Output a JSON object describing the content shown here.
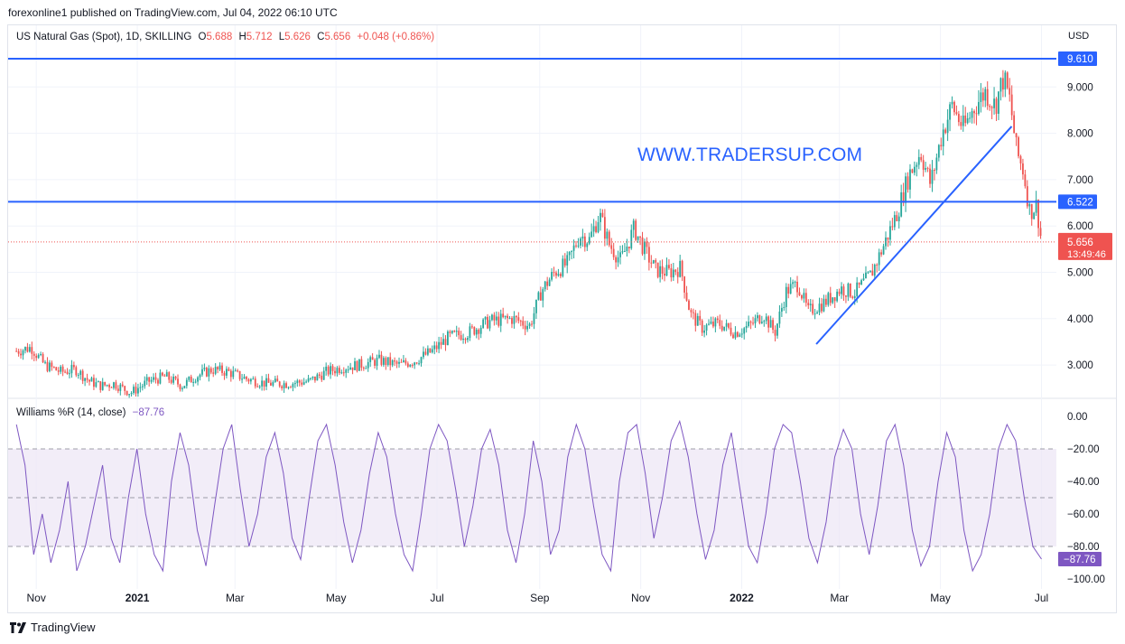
{
  "header": {
    "published_text": "forexonline1 published on TradingView.com, Jul 04, 2022 06:10 UTC"
  },
  "legend": {
    "symbol": "US Natural Gas (Spot), 1D, SKILLING",
    "o_key": "O",
    "o_val": "5.688",
    "h_key": "H",
    "h_val": "5.712",
    "l_key": "L",
    "l_val": "5.626",
    "c_key": "C",
    "c_val": "5.656",
    "change": "+0.048 (+0.86%)"
  },
  "currency": "USD",
  "watermark": "WWW.TRADERSUP.COM",
  "williams": {
    "title": "Williams %R (14, close)",
    "value": "−87.76"
  },
  "footer": {
    "brand": "TradingView"
  },
  "colors": {
    "up": "#26a69a",
    "down": "#ef5350",
    "line": "#2962ff",
    "wpr": "#7e57c2",
    "band": "#ede7f6"
  },
  "chart_data": [
    {
      "type": "candlestick",
      "ylim": [
        2.3,
        10.0
      ],
      "x_tick_labels": [
        "Nov",
        "2021",
        "Mar",
        "May",
        "Jul",
        "Sep",
        "Nov",
        "2022",
        "Mar",
        "May",
        "Jul"
      ],
      "y_tick_labels": [
        "3.000",
        "4.000",
        "5.000",
        "6.000",
        "7.000",
        "8.000",
        "9.000"
      ],
      "y_tick_values": [
        3,
        4,
        5,
        6,
        7,
        8,
        9
      ],
      "horizontal_levels": [
        {
          "value": 9.61,
          "label": "9.610"
        },
        {
          "value": 6.522,
          "label": "6.522"
        }
      ],
      "current_price": {
        "value": 5.656,
        "label": "5.656",
        "countdown": "13:49:46"
      },
      "trendline": {
        "from": {
          "date": "2022-02-15",
          "y": 3.45
        },
        "to": {
          "date": "2022-06-13",
          "y": 8.15
        }
      },
      "series_close": [
        {
          "date": "2020-10-20",
          "v": 3.3
        },
        {
          "date": "2020-10-29",
          "v": 3.38
        },
        {
          "date": "2020-11-06",
          "v": 3.0
        },
        {
          "date": "2020-11-16",
          "v": 2.85
        },
        {
          "date": "2020-11-25",
          "v": 2.9
        },
        {
          "date": "2020-12-03",
          "v": 2.65
        },
        {
          "date": "2020-12-10",
          "v": 2.55
        },
        {
          "date": "2020-12-18",
          "v": 2.6
        },
        {
          "date": "2020-12-28",
          "v": 2.4
        },
        {
          "date": "2021-01-08",
          "v": 2.65
        },
        {
          "date": "2021-01-18",
          "v": 2.75
        },
        {
          "date": "2021-01-28",
          "v": 2.55
        },
        {
          "date": "2021-02-05",
          "v": 2.75
        },
        {
          "date": "2021-02-15",
          "v": 2.9
        },
        {
          "date": "2021-02-25",
          "v": 2.85
        },
        {
          "date": "2021-03-08",
          "v": 2.7
        },
        {
          "date": "2021-03-20",
          "v": 2.6
        },
        {
          "date": "2021-04-01",
          "v": 2.6
        },
        {
          "date": "2021-04-15",
          "v": 2.65
        },
        {
          "date": "2021-04-25",
          "v": 2.85
        },
        {
          "date": "2021-05-05",
          "v": 2.95
        },
        {
          "date": "2021-05-15",
          "v": 3.0
        },
        {
          "date": "2021-05-27",
          "v": 3.1
        },
        {
          "date": "2021-06-08",
          "v": 3.0
        },
        {
          "date": "2021-06-18",
          "v": 3.1
        },
        {
          "date": "2021-06-28",
          "v": 3.3
        },
        {
          "date": "2021-07-08",
          "v": 3.6
        },
        {
          "date": "2021-07-20",
          "v": 3.7
        },
        {
          "date": "2021-08-02",
          "v": 3.95
        },
        {
          "date": "2021-08-16",
          "v": 4.0
        },
        {
          "date": "2021-08-26",
          "v": 3.85
        },
        {
          "date": "2021-09-02",
          "v": 4.6
        },
        {
          "date": "2021-09-10",
          "v": 5.0
        },
        {
          "date": "2021-09-18",
          "v": 5.2
        },
        {
          "date": "2021-09-25",
          "v": 5.8
        },
        {
          "date": "2021-10-01",
          "v": 5.7
        },
        {
          "date": "2021-10-07",
          "v": 6.25
        },
        {
          "date": "2021-10-13",
          "v": 5.6
        },
        {
          "date": "2021-10-20",
          "v": 5.25
        },
        {
          "date": "2021-10-28",
          "v": 5.95
        },
        {
          "date": "2021-11-03",
          "v": 5.5
        },
        {
          "date": "2021-11-10",
          "v": 5.05
        },
        {
          "date": "2021-11-18",
          "v": 5.0
        },
        {
          "date": "2021-11-25",
          "v": 5.1
        },
        {
          "date": "2021-12-01",
          "v": 4.1
        },
        {
          "date": "2021-12-08",
          "v": 3.8
        },
        {
          "date": "2021-12-18",
          "v": 3.9
        },
        {
          "date": "2021-12-28",
          "v": 3.7
        },
        {
          "date": "2022-01-06",
          "v": 3.85
        },
        {
          "date": "2022-01-14",
          "v": 4.1
        },
        {
          "date": "2022-01-21",
          "v": 3.7
        },
        {
          "date": "2022-01-28",
          "v": 4.6
        },
        {
          "date": "2022-02-04",
          "v": 4.75
        },
        {
          "date": "2022-02-10",
          "v": 4.15
        },
        {
          "date": "2022-02-20",
          "v": 4.35
        },
        {
          "date": "2022-03-02",
          "v": 4.65
        },
        {
          "date": "2022-03-10",
          "v": 4.55
        },
        {
          "date": "2022-03-20",
          "v": 4.95
        },
        {
          "date": "2022-03-28",
          "v": 5.6
        },
        {
          "date": "2022-04-05",
          "v": 6.3
        },
        {
          "date": "2022-04-12",
          "v": 7.1
        },
        {
          "date": "2022-04-19",
          "v": 7.6
        },
        {
          "date": "2022-04-25",
          "v": 6.9
        },
        {
          "date": "2022-05-02",
          "v": 8.0
        },
        {
          "date": "2022-05-08",
          "v": 8.6
        },
        {
          "date": "2022-05-15",
          "v": 8.1
        },
        {
          "date": "2022-05-22",
          "v": 8.6
        },
        {
          "date": "2022-05-28",
          "v": 8.9
        },
        {
          "date": "2022-06-03",
          "v": 8.6
        },
        {
          "date": "2022-06-08",
          "v": 9.2
        },
        {
          "date": "2022-06-12",
          "v": 8.7
        },
        {
          "date": "2022-06-16",
          "v": 7.6
        },
        {
          "date": "2022-06-20",
          "v": 7.2
        },
        {
          "date": "2022-06-24",
          "v": 6.3
        },
        {
          "date": "2022-06-28",
          "v": 6.45
        },
        {
          "date": "2022-07-01",
          "v": 5.656
        }
      ]
    },
    {
      "type": "line",
      "title": "Williams %R (14, close)",
      "ylim": [
        -105,
        5
      ],
      "y_tick_labels": [
        "0.00",
        "−20.00",
        "−40.00",
        "−60.00",
        "−80.00",
        "−100.00"
      ],
      "y_tick_values": [
        0,
        -20,
        -40,
        -60,
        -80,
        -100
      ],
      "bands": {
        "upper": -20,
        "middle": -50,
        "lower": -80
      },
      "last_value": {
        "value": -87.76,
        "label": "−87.76"
      },
      "series": [
        {
          "values": [
            -5,
            -30,
            -85,
            -60,
            -90,
            -70,
            -40,
            -95,
            -80,
            -55,
            -30,
            -75,
            -90,
            -50,
            -20,
            -60,
            -85,
            -95,
            -40,
            -10,
            -30,
            -70,
            -92,
            -55,
            -20,
            -5,
            -45,
            -80,
            -60,
            -25,
            -10,
            -35,
            -75,
            -88,
            -50,
            -15,
            -5,
            -30,
            -65,
            -90,
            -70,
            -35,
            -10,
            -25,
            -60,
            -85,
            -95,
            -60,
            -20,
            -5,
            -15,
            -45,
            -80,
            -55,
            -20,
            -8,
            -30,
            -70,
            -90,
            -60,
            -15,
            -40,
            -85,
            -70,
            -25,
            -5,
            -20,
            -55,
            -85,
            -95,
            -40,
            -10,
            -5,
            -35,
            -75,
            -50,
            -15,
            -3,
            -25,
            -60,
            -88,
            -70,
            -30,
            -10,
            -45,
            -80,
            -90,
            -60,
            -20,
            -5,
            -10,
            -40,
            -75,
            -90,
            -65,
            -25,
            -8,
            -20,
            -60,
            -85,
            -55,
            -15,
            -5,
            -30,
            -70,
            -92,
            -80,
            -40,
            -10,
            -25,
            -70,
            -95,
            -85,
            -60,
            -20,
            -5,
            -15,
            -50,
            -80,
            -87.76
          ]
        }
      ]
    }
  ]
}
